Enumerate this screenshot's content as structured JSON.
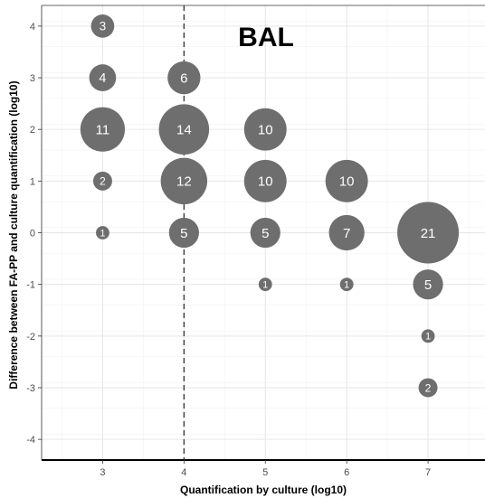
{
  "chart_data": {
    "type": "scatter",
    "title": "BAL",
    "xlabel": "Quantification by culture (log10)",
    "ylabel": "Difference between FA-PP and culture quantification (log10)",
    "xlim": [
      2.25,
      7.7
    ],
    "ylim": [
      -4.4,
      4.4
    ],
    "x_ticks": [
      3,
      4,
      5,
      6,
      7
    ],
    "y_ticks": [
      -4,
      -3,
      -2,
      -1,
      0,
      1,
      2,
      3,
      4
    ],
    "reference_line": {
      "axis": "x",
      "value": 4,
      "style": "dashed"
    },
    "grid": true,
    "bubble_color": "#6e6e6e",
    "points": [
      {
        "x": 3,
        "y": 4,
        "n": 3
      },
      {
        "x": 3,
        "y": 3,
        "n": 4
      },
      {
        "x": 3,
        "y": 2,
        "n": 11
      },
      {
        "x": 3,
        "y": 1,
        "n": 2
      },
      {
        "x": 3,
        "y": 0,
        "n": 1
      },
      {
        "x": 4,
        "y": 3,
        "n": 6
      },
      {
        "x": 4,
        "y": 2,
        "n": 14
      },
      {
        "x": 4,
        "y": 1,
        "n": 12
      },
      {
        "x": 4,
        "y": 0,
        "n": 5
      },
      {
        "x": 5,
        "y": 2,
        "n": 10
      },
      {
        "x": 5,
        "y": 1,
        "n": 10
      },
      {
        "x": 5,
        "y": 0,
        "n": 5
      },
      {
        "x": 5,
        "y": -1,
        "n": 1
      },
      {
        "x": 6,
        "y": 1,
        "n": 10
      },
      {
        "x": 6,
        "y": 0,
        "n": 7
      },
      {
        "x": 6,
        "y": -1,
        "n": 1
      },
      {
        "x": 7,
        "y": 0,
        "n": 21
      },
      {
        "x": 7,
        "y": -1,
        "n": 5
      },
      {
        "x": 7,
        "y": -2,
        "n": 1
      },
      {
        "x": 7,
        "y": -3,
        "n": 2
      }
    ]
  }
}
